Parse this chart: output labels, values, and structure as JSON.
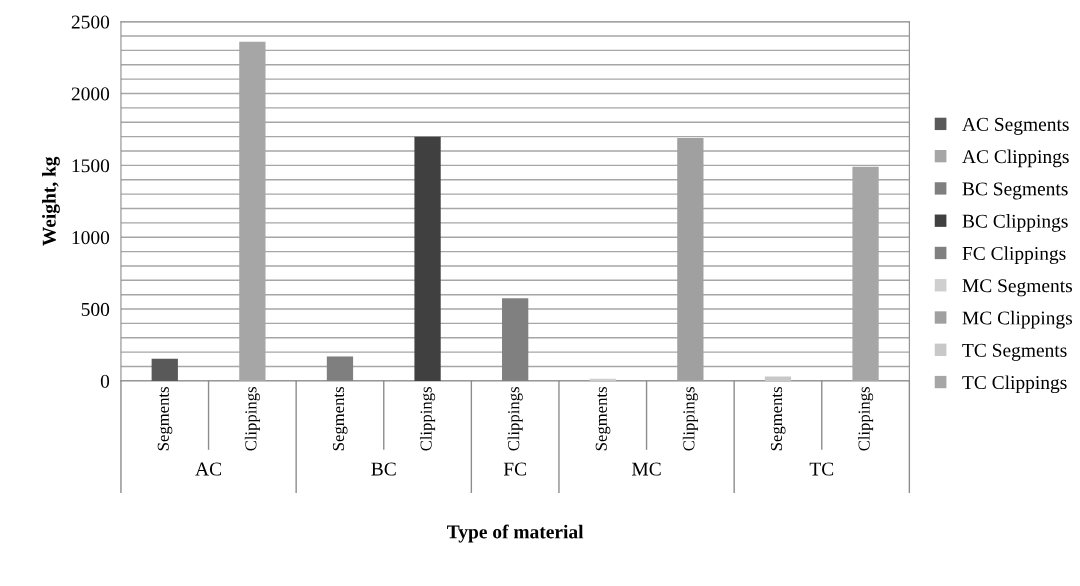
{
  "chart_data": {
    "type": "bar",
    "xlabel": "Type of material",
    "ylabel": "Weight, kg",
    "categories": [
      "Segments",
      "Clippings",
      "Segments",
      "Clippings",
      "Clippings",
      "Segments",
      "Clippings",
      "Segments",
      "Clippings"
    ],
    "annotations": [
      "AC",
      "BC",
      "FC",
      "MC",
      "TC"
    ],
    "series": [
      {
        "name": "AC Segments",
        "color": "#595959",
        "values": [
          155,
          null,
          null,
          null,
          null,
          null,
          null,
          null,
          null
        ]
      },
      {
        "name": "AC Clippings",
        "color": "#a6a6a6",
        "values": [
          null,
          2360,
          null,
          null,
          null,
          null,
          null,
          null,
          null
        ]
      },
      {
        "name": "BC Segments",
        "color": "#7f7f7f",
        "values": [
          null,
          null,
          170,
          null,
          null,
          null,
          null,
          null,
          null
        ]
      },
      {
        "name": "BC Clippings",
        "color": "#404040",
        "values": [
          null,
          null,
          null,
          1700,
          null,
          null,
          null,
          null,
          null
        ]
      },
      {
        "name": "FC Clippings",
        "color": "#808080",
        "values": [
          null,
          null,
          null,
          null,
          575,
          null,
          null,
          null,
          null
        ]
      },
      {
        "name": "MC Segments",
        "color": "#cfcfcf",
        "values": [
          null,
          null,
          null,
          null,
          null,
          15,
          null,
          null,
          null
        ]
      },
      {
        "name": "MC Clippings",
        "color": "#a0a0a0",
        "values": [
          null,
          null,
          null,
          null,
          null,
          null,
          1690,
          null,
          null
        ]
      },
      {
        "name": "TC Segments",
        "color": "#c8c8c8",
        "values": [
          null,
          null,
          null,
          null,
          null,
          null,
          null,
          30,
          null
        ]
      },
      {
        "name": "TC Clippings",
        "color": "#a6a6a6",
        "values": [
          null,
          null,
          null,
          null,
          null,
          null,
          null,
          null,
          1490
        ]
      }
    ],
    "ylim": [
      0,
      2500
    ],
    "yticks": [
      0,
      {
        "value": 100,
        "label": null
      },
      {
        "value": 200,
        "label": null
      },
      {
        "value": 300,
        "label": null
      },
      {
        "value": 400,
        "label": null
      },
      500,
      {
        "value": 600,
        "label": null
      },
      {
        "value": 700,
        "label": null
      },
      {
        "value": 800,
        "label": null
      },
      {
        "value": 900,
        "label": null
      },
      1000,
      {
        "value": 1100,
        "label": null
      },
      {
        "value": 1200,
        "label": null
      },
      {
        "value": 1300,
        "label": null
      },
      {
        "value": 1400,
        "label": null
      },
      1500,
      {
        "value": 1600,
        "label": null
      },
      {
        "value": 1700,
        "label": null
      },
      {
        "value": 1800,
        "label": null
      },
      {
        "value": 1900,
        "label": null
      },
      2000,
      {
        "value": 2100,
        "label": null
      },
      {
        "value": 2200,
        "label": null
      },
      {
        "value": 2300,
        "label": null
      },
      {
        "value": 2400,
        "label": null
      },
      2500
    ],
    "grid": "y",
    "legend": "right"
  }
}
